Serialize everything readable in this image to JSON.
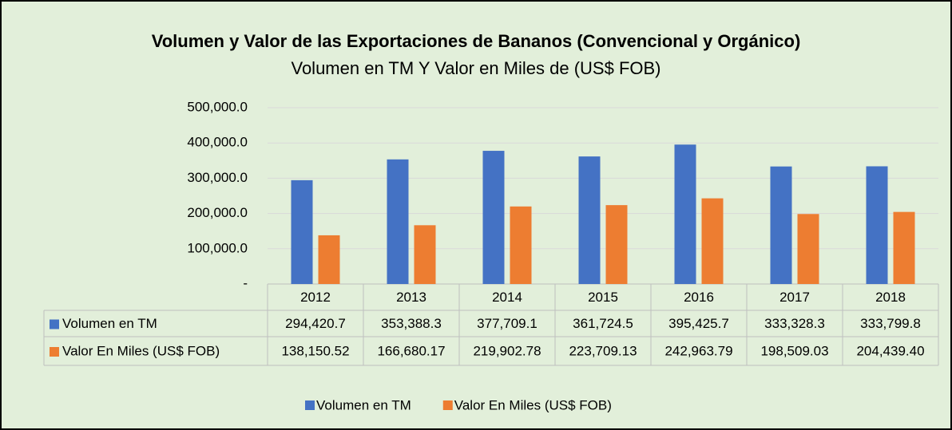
{
  "chart_data": {
    "type": "bar",
    "title": "Volumen y Valor de las Exportaciones de Bananos (Convencional y Orgánico)",
    "subtitle": "Volumen en TM Y Valor en Miles de (US$ FOB)",
    "categories": [
      "2012",
      "2013",
      "2014",
      "2015",
      "2016",
      "2017",
      "2018"
    ],
    "series": [
      {
        "name": "Volumen en TM",
        "color": "#4472c4",
        "values": [
          294420.7,
          353388.3,
          377709.1,
          361724.5,
          395425.7,
          333328.3,
          333799.8
        ],
        "value_labels": [
          "294,420.7",
          "353,388.3",
          "377,709.1",
          "361,724.5",
          "395,425.7",
          "333,328.3",
          "333,799.8"
        ]
      },
      {
        "name": "Valor En Miles  (US$ FOB)",
        "color": "#ed7d31",
        "values": [
          138150.52,
          166680.17,
          219902.78,
          223709.13,
          242963.79,
          198509.03,
          204439.4
        ],
        "value_labels": [
          "138,150.52",
          "166,680.17",
          "219,902.78",
          "223,709.13",
          "242,963.79",
          "198,509.03",
          "204,439.40"
        ]
      }
    ],
    "ylim": [
      0,
      500000
    ],
    "yticks": [
      {
        "value": 0,
        "label": "-"
      },
      {
        "value": 100000,
        "label": "100,000.0"
      },
      {
        "value": 200000,
        "label": "200,000.0"
      },
      {
        "value": 300000,
        "label": "300,000.0"
      },
      {
        "value": 400000,
        "label": "400,000.0"
      },
      {
        "value": 500000,
        "label": "500,000.0"
      }
    ],
    "grid": true,
    "legend": "bottom"
  }
}
